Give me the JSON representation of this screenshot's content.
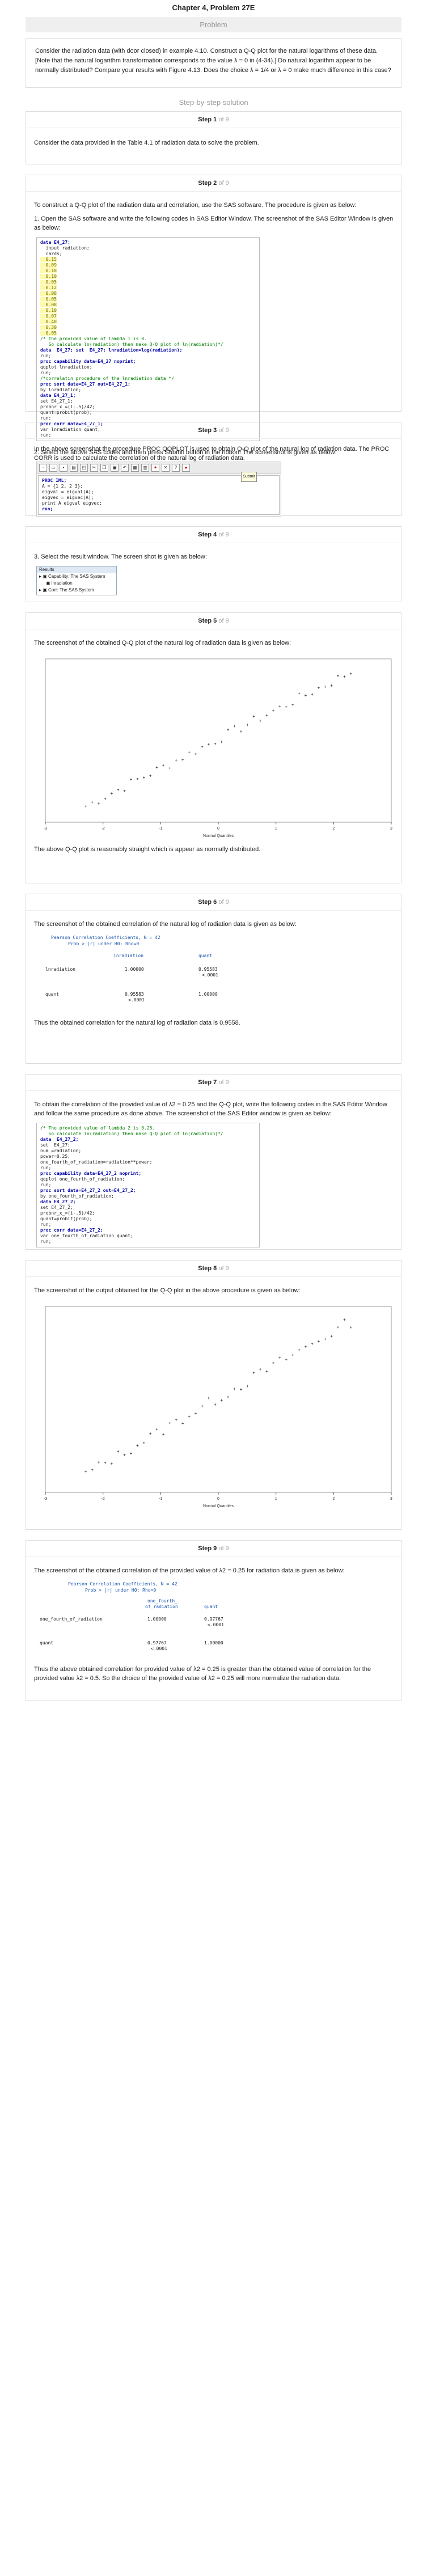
{
  "page": {
    "title": "Chapter 4, Problem 27E",
    "problem_header": "Problem",
    "problem_text": "Consider the radiation data (with door closed) in example 4.10. Construct a Q-Q plot for the natural logarithms of these data. [Note that the natural logarithm transformation corresponds to the value λ = 0 in (4-34).] Do natural logarithm appear to be normally distributed? Compare your results with Figure 4.13. Does the choice  λ = 1/4  or λ = 0 make much difference in this case?",
    "step_by_step": "Step-by-step solution"
  },
  "steps": [
    {
      "num": "Step 1",
      "of": "of 9",
      "text": "Consider the data provided in the Table 4.1 of radiation data to solve the problem."
    },
    {
      "num": "Step 2",
      "of": "of 9",
      "text1": "To construct a Q-Q plot of the radiation data and correlation, use the SAS software. The procedure is given as below:",
      "text2": "1. Open the SAS software and write the following codes in SAS Editor Window. The screenshot of the SAS Editor Window is given as below:",
      "text3": "In the above screenshot the procedure PROC QQPLOT is used to obtain Q-Q plot of the natural log of radiation data. The PROC CORR is used to calculate the correlation of the natural log of radiation data."
    },
    {
      "num": "Step 3",
      "of": "of 9",
      "text": "2. Select the above SAS codes and then press Submit button in the ribbon. The screenshot is given as below:"
    },
    {
      "num": "Step 4",
      "of": "of 9",
      "text": "3. Select the result window. The screen shot is given as below:"
    },
    {
      "num": "Step 5",
      "of": "of 9",
      "text1": "The screenshot of the obtained Q-Q plot of the natural log of radiation data is given as below:",
      "text2": "The above Q-Q plot is reasonably straight which is appear as normally distributed."
    },
    {
      "num": "Step 6",
      "of": "of 9",
      "text1": "The screenshot of the obtained correlation of the natural log of radiation data is given as below:",
      "text2": "Thus the obtained correlation for the natural log of radiation data is 0.9558."
    },
    {
      "num": "Step 7",
      "of": "of 9",
      "text1": "To obtain the correlation of the provided value of  λ2 = 0.25 and the Q-Q plot, write the following codes in the SAS Editor Window and follow the same procedure as done above. The screenshot of the SAS Editor window is given as below:"
    },
    {
      "num": "Step 8",
      "of": "of 9",
      "text1": "The screenshot of the output obtained for the Q-Q plot in the above procedure is given as below:"
    },
    {
      "num": "Step 9",
      "of": "of 9",
      "text1": "The screenshot of the obtained correlation of the provided value of  λ2 = 0.25 for radiation data is given as below:",
      "text2": "Thus the above obtained correlation for provided value of  λ2 = 0.25 is greater than the obtained value of correlation for the provided value  λ2 = 0.5. So the choice of the provided value of  λ2 = 0.25 will more normalize the radiation data."
    }
  ],
  "code1": {
    "lines": [
      "data E4_27;",
      "  input radiation;",
      "  cards;",
      "  0.15",
      "  0.09",
      "  0.18",
      "  0.10",
      "  0.05",
      "  0.12",
      "  0.08",
      "  0.05",
      "  0.08",
      "  0.10",
      "  0.07",
      "  0.40",
      "  0.30",
      "  0.05"
    ],
    "comment1": "/* The provided value of lambda 1 is 0.",
    "comment2": "   So calculate ln(radiation) then make Q-Q plot of ln(radiation)*/",
    "l1": "data  E4_27; set  E4_27; lnradiation=log(radiation);",
    "l2": "run;",
    "l3": "proc capability data=E4_27 noprint;",
    "l4": "qqplot lnradiation;",
    "l5": "run;",
    "comment3": "/*correlatin procedure of the lnradiation data */",
    "l6": "proc sort data=E4_27 out=E4_27_1;",
    "l7": "by lnradiation;",
    "l8": "data E4_27_1;",
    "l9": "set E4_27_1;",
    "l10": "probnr_x_=(i-.5)/42;",
    "l11": "quant=probit(prob);",
    "l12": "run;",
    "l13": "proc corr data=E4_27_1;",
    "l14": "var lnradiation quant;",
    "l15": "run;"
  },
  "code2": {
    "submit": "Submit",
    "lines": [
      "PROC IML;",
      "A = {1 2, 2 3};",
      "eigval = eigval(A);",
      "eigvec = eigvec(A);",
      "print A eigval eigvec;",
      "run;"
    ]
  },
  "results": {
    "title": "Results",
    "item1": "Capability: The SAS System",
    "item2": "lnradiation",
    "item3": "Corr: The SAS System"
  },
  "plot1": {
    "xlabel": "Normal Quantiles",
    "ticks_x": [
      "-3",
      "-2",
      "-1",
      "0",
      "1",
      "2",
      "3"
    ]
  },
  "corr1": {
    "title": "Pearson Correlation Coefficients, N = 42",
    "sub": "Prob > |r| under H0: Rho=0",
    "col1": "lnradiation",
    "col2": "quant",
    "row1": "lnradiation",
    "r1c1": "1.00000",
    "r1c2": "0.95583",
    "r1c2p": "<.0001",
    "row2": "quant",
    "r2c1": "0.95583",
    "r2c1p": "<.0001",
    "r2c2": "1.00000"
  },
  "code3": {
    "comment1": "/* The provided value of lambda 2 is 0.25.",
    "comment2": "   So calculate ln(radiation) then make Q-Q plot of ln(radiation)*/",
    "l1": "data  E4_27_2;",
    "l2": "set  E4_27;",
    "l3": "num =radiation;",
    "l4": "power=0.25;",
    "l5": "one_fourth_of_radiation=radiation**power;",
    "l6": "run;",
    "l7": "proc capability data=E4_27_2 noprint;",
    "l8": "qqplot one_fourth_of_radiation;",
    "l9": "run;",
    "l10": "proc sort data=E4_27_2 out=E4_27_2;",
    "l11": "by one_fourth_of_radiation;",
    "l12": "data E4_27_2;",
    "l13": "set E4_27_2;",
    "l14": "probnr_x_=(i-.5)/42;",
    "l15": "quant=probit(prob);",
    "l16": "run;",
    "l17": "proc corr data=E4_27_2;",
    "l18": "var one_fourth_of_radiation quant;",
    "l19": "run;"
  },
  "plot2": {
    "xlabel": "Normal Quantiles",
    "ticks_x": [
      "-3",
      "-2",
      "-1",
      "0",
      "1",
      "2",
      "3"
    ]
  },
  "corr2": {
    "title": "Pearson Correlation Coefficients, N = 42",
    "sub": "Prob > |r| under H0: Rho=0",
    "col1a": "one_fourth_",
    "col1b": "of_radiation",
    "col2": "quant",
    "row1": "one_fourth_of_radiation",
    "r1c1": "1.00000",
    "r1c2": "0.97767",
    "r1c2p": "<.0001",
    "row2": "quant",
    "r2c1": "0.97767",
    "r2c1p": "<.0001",
    "r2c2": "1.00000"
  }
}
